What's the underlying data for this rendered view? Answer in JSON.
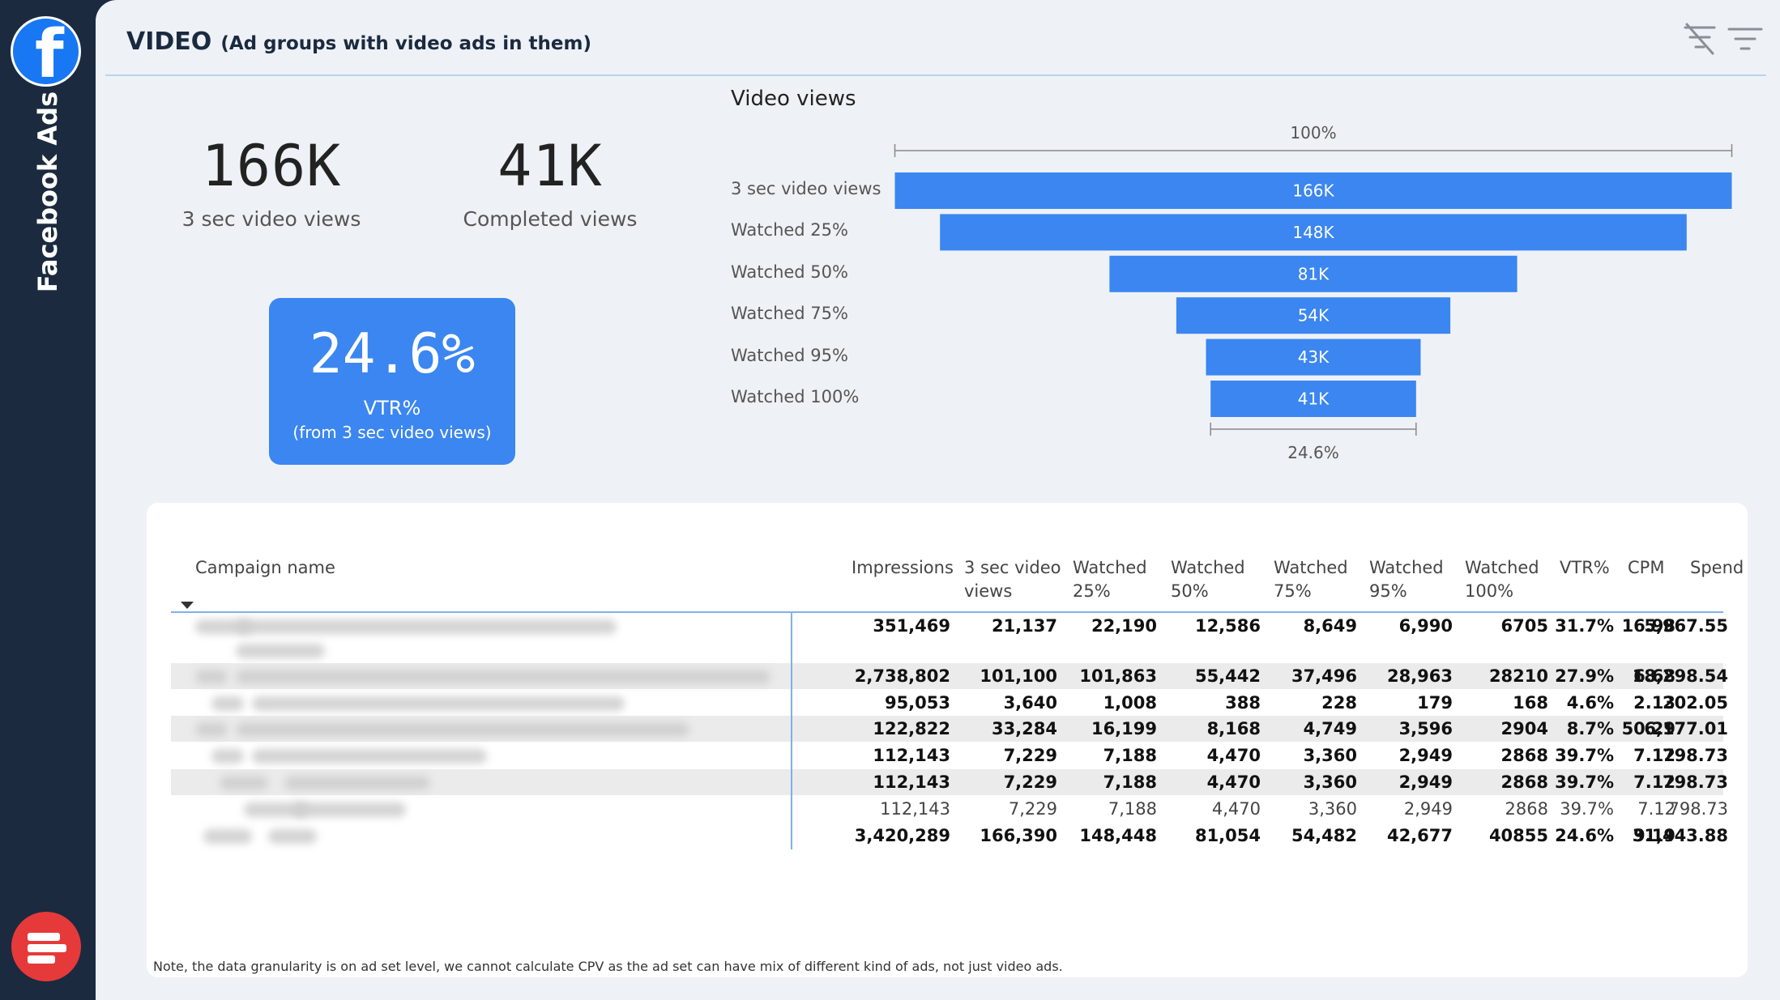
{
  "sidebar": {
    "label": "Facebook Ads"
  },
  "header": {
    "title": "VIDEO",
    "subtitle": "(Ad groups with video ads in them)"
  },
  "kpis": {
    "views_3sec": {
      "value": "166K",
      "label": "3 sec video views"
    },
    "completed": {
      "value": "41K",
      "label": "Completed views"
    },
    "vtr": {
      "value": "24.6%",
      "label": "VTR%",
      "sublabel": "(from 3 sec video views)"
    }
  },
  "chart_data": {
    "type": "bar",
    "title": "Video views",
    "categories": [
      "3 sec video views",
      "Watched 25%",
      "Watched 50%",
      "Watched 75%",
      "Watched 95%",
      "Watched 100%"
    ],
    "values": [
      166390,
      148448,
      81054,
      54482,
      42677,
      40855
    ],
    "data_labels": [
      "166K",
      "148K",
      "81K",
      "54K",
      "43K",
      "41K"
    ],
    "top_annotation": "100%",
    "bottom_annotation": "24.6%",
    "bar_color": "#3b86f0"
  },
  "table": {
    "columns": [
      "Campaign name",
      "Impressions",
      "3 sec video views",
      "Watched 25%",
      "Watched 50%",
      "Watched 75%",
      "Watched 95%",
      "Watched 100%",
      "VTR%",
      "CPM",
      "Spend"
    ],
    "rows": [
      {
        "cells": [
          "351,469",
          "21,137",
          "22,190",
          "12,586",
          "8,649",
          "6,990",
          "6705",
          "31.7%",
          "16.98",
          "5,967.55"
        ],
        "style": "bold"
      },
      {
        "cells": [
          "2,738,802",
          "101,100",
          "101,863",
          "55,442",
          "37,496",
          "28,963",
          "28210",
          "27.9%",
          "6.68",
          "18,298.54"
        ],
        "style": "bold"
      },
      {
        "cells": [
          "95,053",
          "3,640",
          "1,008",
          "388",
          "228",
          "179",
          "168",
          "4.6%",
          "2.13",
          "202.05"
        ],
        "style": "bold"
      },
      {
        "cells": [
          "122,822",
          "33,284",
          "16,199",
          "8,168",
          "4,749",
          "3,596",
          "2904",
          "8.7%",
          "50.29",
          "6,177.01"
        ],
        "style": "bold"
      },
      {
        "cells": [
          "112,143",
          "7,229",
          "7,188",
          "4,470",
          "3,360",
          "2,949",
          "2868",
          "39.7%",
          "7.12",
          "798.73"
        ],
        "style": "bold"
      },
      {
        "cells": [
          "112,143",
          "7,229",
          "7,188",
          "4,470",
          "3,360",
          "2,949",
          "2868",
          "39.7%",
          "7.12",
          "798.73"
        ],
        "style": "bold"
      },
      {
        "cells": [
          "112,143",
          "7,229",
          "7,188",
          "4,470",
          "3,360",
          "2,949",
          "2868",
          "39.7%",
          "7.12",
          "798.73"
        ],
        "style": "light"
      },
      {
        "cells": [
          "3,420,289",
          "166,390",
          "148,448",
          "81,054",
          "54,482",
          "42,677",
          "40855",
          "24.6%",
          "9.19",
          "31,443.88"
        ],
        "style": "bold"
      }
    ]
  },
  "note": "Note, the data granularity is on ad set level, we cannot calculate CPV as the ad set can have mix of different kind of ads, not just video ads.",
  "colors": {
    "sidebar": "#1b2a3f",
    "background": "#eef2f6",
    "accent": "#3b86f0",
    "facebook": "#1877f2",
    "brand": "#e63a3a"
  }
}
